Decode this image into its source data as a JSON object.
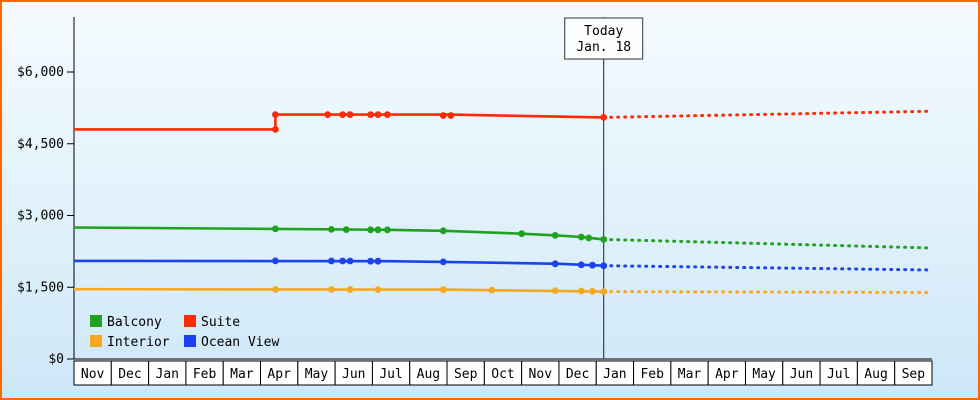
{
  "chart_data": {
    "type": "line",
    "title": "",
    "units": "USD",
    "grid": false,
    "legend_position": "bottom-left",
    "x_tick_labels": [
      "Nov",
      "Dec",
      "Jan",
      "Feb",
      "Mar",
      "Apr",
      "May",
      "Jun",
      "Jul",
      "Aug",
      "Sep",
      "Oct",
      "Nov",
      "Dec",
      "Jan",
      "Feb",
      "Mar",
      "Apr",
      "May",
      "Jun",
      "Jul",
      "Aug",
      "Sep"
    ],
    "x_range_months": 23,
    "y_axis": {
      "min": 0,
      "max": 6000,
      "ticks": [
        {
          "value": 0,
          "label": "$0"
        },
        {
          "value": 1500,
          "label": "$1,500"
        },
        {
          "value": 3000,
          "label": "$3,000"
        },
        {
          "value": 4500,
          "label": "$4,500"
        },
        {
          "value": 6000,
          "label": "$6,000"
        }
      ]
    },
    "today": {
      "x_months": 14.2,
      "label_line1": "Today",
      "label_line2": "Jan. 18"
    },
    "series": [
      {
        "name": "Balcony",
        "color": "#1fa21f",
        "history": [
          [
            0,
            2750
          ],
          [
            5.4,
            2720
          ],
          [
            8.4,
            2700
          ],
          [
            9.9,
            2680
          ],
          [
            12,
            2620
          ],
          [
            13,
            2580
          ],
          [
            13.6,
            2550
          ],
          [
            14.2,
            2500
          ]
        ],
        "markers": [
          [
            5.4,
            2720
          ],
          [
            6.9,
            2710
          ],
          [
            7.3,
            2705
          ],
          [
            7.95,
            2700
          ],
          [
            8.15,
            2700
          ],
          [
            8.4,
            2700
          ],
          [
            9.9,
            2680
          ],
          [
            12,
            2620
          ],
          [
            12.9,
            2585
          ],
          [
            13.6,
            2550
          ],
          [
            13.8,
            2530
          ],
          [
            14.2,
            2500
          ]
        ],
        "forecast": [
          [
            14.2,
            2500
          ],
          [
            23,
            2320
          ]
        ]
      },
      {
        "name": "Suite",
        "color": "#fb2c06",
        "history": [
          [
            0,
            4800
          ],
          [
            5.4,
            4800
          ],
          [
            5.4,
            5110
          ],
          [
            10.1,
            5110
          ],
          [
            14.2,
            5050
          ]
        ],
        "markers": [
          [
            5.4,
            4800
          ],
          [
            5.4,
            5110
          ],
          [
            6.8,
            5110
          ],
          [
            7.2,
            5110
          ],
          [
            7.4,
            5110
          ],
          [
            7.95,
            5110
          ],
          [
            8.15,
            5110
          ],
          [
            8.4,
            5110
          ],
          [
            9.9,
            5090
          ],
          [
            10.1,
            5090
          ],
          [
            14.2,
            5050
          ]
        ],
        "forecast": [
          [
            14.2,
            5050
          ],
          [
            23,
            5180
          ]
        ]
      },
      {
        "name": "Interior",
        "color": "#f7a823",
        "history": [
          [
            0,
            1460
          ],
          [
            9.9,
            1450
          ],
          [
            14.2,
            1410
          ]
        ],
        "markers": [
          [
            5.4,
            1455
          ],
          [
            6.9,
            1452
          ],
          [
            7.4,
            1452
          ],
          [
            8.15,
            1450
          ],
          [
            9.9,
            1448
          ],
          [
            11.2,
            1440
          ],
          [
            12.9,
            1430
          ],
          [
            13.6,
            1422
          ],
          [
            13.9,
            1415
          ],
          [
            14.2,
            1410
          ]
        ],
        "forecast": [
          [
            14.2,
            1410
          ],
          [
            23,
            1390
          ]
        ]
      },
      {
        "name": "Ocean View",
        "color": "#1a43ee",
        "history": [
          [
            0,
            2050
          ],
          [
            8.4,
            2045
          ],
          [
            9.9,
            2030
          ],
          [
            13,
            1990
          ],
          [
            14.2,
            1950
          ]
        ],
        "markers": [
          [
            5.4,
            2050
          ],
          [
            6.9,
            2048
          ],
          [
            7.2,
            2048
          ],
          [
            7.4,
            2048
          ],
          [
            7.95,
            2045
          ],
          [
            8.15,
            2045
          ],
          [
            9.9,
            2030
          ],
          [
            12.9,
            1990
          ],
          [
            13.6,
            1970
          ],
          [
            13.9,
            1960
          ],
          [
            14.2,
            1950
          ]
        ],
        "forecast": [
          [
            14.2,
            1950
          ],
          [
            23,
            1860
          ]
        ]
      }
    ]
  }
}
